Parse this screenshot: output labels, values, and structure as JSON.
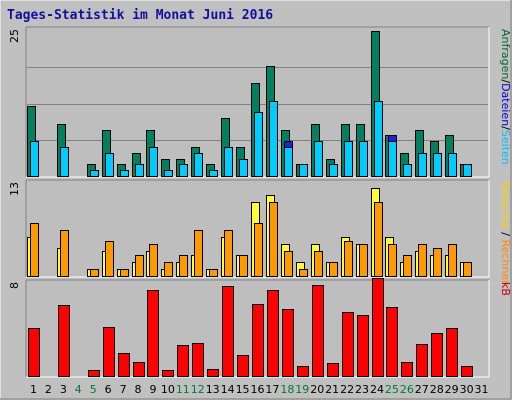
{
  "chart_data": {
    "type": "bar",
    "title": "Tages-Statistik im Monat Juni 2016",
    "days": [
      "1",
      "2",
      "3",
      "4",
      "5",
      "6",
      "7",
      "8",
      "9",
      "10",
      "11",
      "12",
      "13",
      "14",
      "15",
      "16",
      "17",
      "18",
      "19",
      "20",
      "21",
      "22",
      "23",
      "24",
      "25",
      "26",
      "27",
      "28",
      "29",
      "30",
      "31"
    ],
    "weekend_days": [
      "4",
      "5",
      "11",
      "12",
      "18",
      "19",
      "25",
      "26"
    ],
    "panels": [
      {
        "id": "top",
        "ymax_label": "25",
        "ymax": 25,
        "right_label_parts": [
          {
            "text": "Anfragen",
            "color": "#006633"
          },
          {
            "text": "/",
            "color": "#000000"
          },
          {
            "text": "Dateien",
            "color": "#0000cc"
          },
          {
            "text": "/",
            "color": "#000000"
          },
          {
            "text": "Seiten",
            "color": "#00bfff"
          }
        ],
        "series": [
          {
            "name": "Anfragen",
            "color": "#008060",
            "values": [
              12,
              0,
              9,
              0,
              2,
              8,
              2,
              4,
              8,
              3,
              3,
              5,
              2,
              10,
              5,
              16,
              19,
              8,
              2,
              9,
              3,
              9,
              9,
              25,
              7,
              4,
              8,
              6,
              7,
              2,
              0
            ]
          },
          {
            "name": "Dateien",
            "color": "#2020e0",
            "values": [
              6,
              0,
              5,
              0,
              1,
              4,
              1,
              2,
              5,
              1,
              2,
              4,
              1,
              5,
              3,
              11,
              13,
              6,
              2,
              6,
              2,
              6,
              6,
              13,
              7,
              2,
              4,
              4,
              4,
              2,
              0
            ]
          },
          {
            "name": "Seiten",
            "color": "#00ccff",
            "values": [
              6,
              0,
              5,
              0,
              1,
              4,
              1,
              2,
              5,
              1,
              2,
              4,
              1,
              5,
              3,
              11,
              13,
              5,
              2,
              6,
              2,
              6,
              6,
              13,
              6,
              2,
              4,
              4,
              4,
              2,
              0
            ]
          }
        ]
      },
      {
        "id": "middle",
        "ymax_label": "13",
        "ymax": 13,
        "right_label_parts": [
          {
            "text": "Besuche",
            "color": "#ffcc00"
          },
          {
            "text": " / ",
            "color": "#000000"
          },
          {
            "text": "Rechner",
            "color": "#ff8800"
          }
        ],
        "series": [
          {
            "name": "Besuche",
            "color": "#ffff33",
            "values": [
              5.5,
              0,
              4,
              0,
              1,
              3.5,
              1,
              2,
              3.5,
              1,
              2,
              3,
              1,
              5.5,
              3,
              10.5,
              11.5,
              4.5,
              2,
              4.5,
              2,
              5.5,
              4.5,
              12.5,
              5.5,
              2,
              3.5,
              3,
              3,
              2,
              0
            ]
          },
          {
            "name": "Rechner",
            "color": "#ff9900",
            "values": [
              7.5,
              0,
              6.5,
              0,
              1,
              5,
              1,
              3,
              4.5,
              2,
              3,
              6.5,
              1,
              6.5,
              3,
              7.5,
              10.5,
              3.5,
              1,
              3.5,
              2,
              5,
              4.5,
              10.5,
              4.5,
              3,
              4.5,
              4,
              4.5,
              2,
              0
            ]
          }
        ]
      },
      {
        "id": "bottom",
        "ymax_label": "8",
        "ymax": 8,
        "right_label_parts": [
          {
            "text": "kB",
            "color": "#cc0000"
          }
        ],
        "series": [
          {
            "name": "kB",
            "color": "#ff0000",
            "values": [
              4.2,
              0,
              6.2,
              0,
              0.5,
              4.3,
              2,
              1.2,
              7.5,
              0.5,
              2.7,
              2.9,
              0.6,
              7.8,
              1.8,
              6.3,
              7.5,
              5.8,
              0.9,
              7.9,
              1.1,
              5.6,
              5.3,
              8.5,
              6,
              1.2,
              2.8,
              3.7,
              4.2,
              0.9,
              0
            ]
          }
        ]
      }
    ],
    "colors": {
      "background": "#c0c0c0",
      "plot_background": "#bebebe",
      "weekday_label": "#000000",
      "weekend_label": "#007744"
    }
  }
}
